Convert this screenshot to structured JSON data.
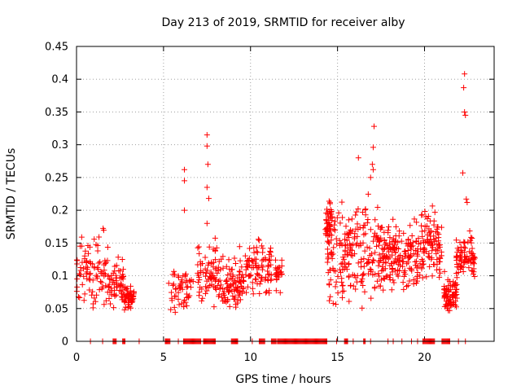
{
  "chart_data": {
    "type": "scatter",
    "title": "Day 213 of 2019, SRMTID for receiver alby",
    "xlabel": "GPS time / hours",
    "ylabel": "SRMTID / TECUs",
    "xlim": [
      0,
      24
    ],
    "ylim": [
      0,
      0.45
    ],
    "xticks": [
      0,
      5,
      10,
      15,
      20
    ],
    "yticks": [
      0,
      0.05,
      0.1,
      0.15,
      0.2,
      0.25,
      0.3,
      0.35,
      0.4,
      0.45
    ],
    "xtick_labels": [
      "0",
      "5",
      "10",
      "15",
      "20"
    ],
    "ytick_labels": [
      "0",
      "0.05",
      "0.1",
      "0.15",
      "0.2",
      "0.25",
      "0.3",
      "0.35",
      "0.4",
      "0.45"
    ],
    "grid": true,
    "marker": "+",
    "color": "#ff0000",
    "clusters": [
      {
        "start": 0.0,
        "end": 1.8,
        "low": 0.03,
        "high": 0.18,
        "n": 90
      },
      {
        "start": 1.8,
        "end": 2.7,
        "low": 0.035,
        "high": 0.14,
        "n": 60
      },
      {
        "start": 2.7,
        "end": 3.3,
        "low": 0.035,
        "high": 0.1,
        "n": 50
      },
      {
        "start": 5.3,
        "end": 6.9,
        "low": 0.04,
        "high": 0.125,
        "n": 55
      },
      {
        "start": 6.9,
        "end": 8.3,
        "low": 0.04,
        "high": 0.17,
        "n": 80
      },
      {
        "start": 8.3,
        "end": 9.6,
        "low": 0.03,
        "high": 0.15,
        "n": 90
      },
      {
        "start": 9.6,
        "end": 11.2,
        "low": 0.04,
        "high": 0.175,
        "n": 90
      },
      {
        "start": 11.4,
        "end": 11.8,
        "low": 0.07,
        "high": 0.135,
        "n": 25
      },
      {
        "start": 14.3,
        "end": 14.7,
        "low": 0.14,
        "high": 0.22,
        "n": 35
      },
      {
        "start": 14.4,
        "end": 17.6,
        "low": 0.03,
        "high": 0.24,
        "n": 230
      },
      {
        "start": 17.6,
        "end": 19.7,
        "low": 0.06,
        "high": 0.2,
        "n": 160
      },
      {
        "start": 19.7,
        "end": 21.0,
        "low": 0.07,
        "high": 0.22,
        "n": 100
      },
      {
        "start": 21.1,
        "end": 21.9,
        "low": 0.04,
        "high": 0.11,
        "n": 80
      },
      {
        "start": 21.8,
        "end": 22.9,
        "low": 0.08,
        "high": 0.18,
        "n": 80
      }
    ],
    "outliers": [
      {
        "x": 6.2,
        "y": 0.262
      },
      {
        "x": 6.2,
        "y": 0.245
      },
      {
        "x": 6.2,
        "y": 0.2
      },
      {
        "x": 7.5,
        "y": 0.315
      },
      {
        "x": 7.5,
        "y": 0.298
      },
      {
        "x": 7.55,
        "y": 0.27
      },
      {
        "x": 7.5,
        "y": 0.235
      },
      {
        "x": 7.6,
        "y": 0.218
      },
      {
        "x": 7.5,
        "y": 0.18
      },
      {
        "x": 16.2,
        "y": 0.28
      },
      {
        "x": 17.1,
        "y": 0.328
      },
      {
        "x": 17.05,
        "y": 0.296
      },
      {
        "x": 17.0,
        "y": 0.27
      },
      {
        "x": 17.05,
        "y": 0.262
      },
      {
        "x": 16.9,
        "y": 0.25
      },
      {
        "x": 22.3,
        "y": 0.408
      },
      {
        "x": 22.25,
        "y": 0.387
      },
      {
        "x": 22.3,
        "y": 0.35
      },
      {
        "x": 22.35,
        "y": 0.345
      },
      {
        "x": 22.2,
        "y": 0.257
      },
      {
        "x": 22.4,
        "y": 0.217
      },
      {
        "x": 22.45,
        "y": 0.212
      }
    ],
    "zero_segments": [
      {
        "start": 2.1,
        "end": 2.3
      },
      {
        "start": 2.65,
        "end": 2.8
      },
      {
        "start": 5.1,
        "end": 5.4
      },
      {
        "start": 6.15,
        "end": 7.15
      },
      {
        "start": 7.3,
        "end": 8.0
      },
      {
        "start": 8.9,
        "end": 9.3
      },
      {
        "start": 10.5,
        "end": 10.85
      },
      {
        "start": 11.2,
        "end": 11.5
      },
      {
        "start": 11.55,
        "end": 14.4
      },
      {
        "start": 15.4,
        "end": 15.6
      },
      {
        "start": 16.5,
        "end": 16.6
      },
      {
        "start": 19.9,
        "end": 20.6
      },
      {
        "start": 21.0,
        "end": 21.45
      }
    ],
    "zero_points": [
      0.8,
      1.5,
      3.6,
      5.85,
      10.1,
      14.95,
      15.9,
      16.9,
      17.9,
      18.2,
      18.7,
      19.25,
      19.6,
      21.95,
      22.35
    ]
  }
}
